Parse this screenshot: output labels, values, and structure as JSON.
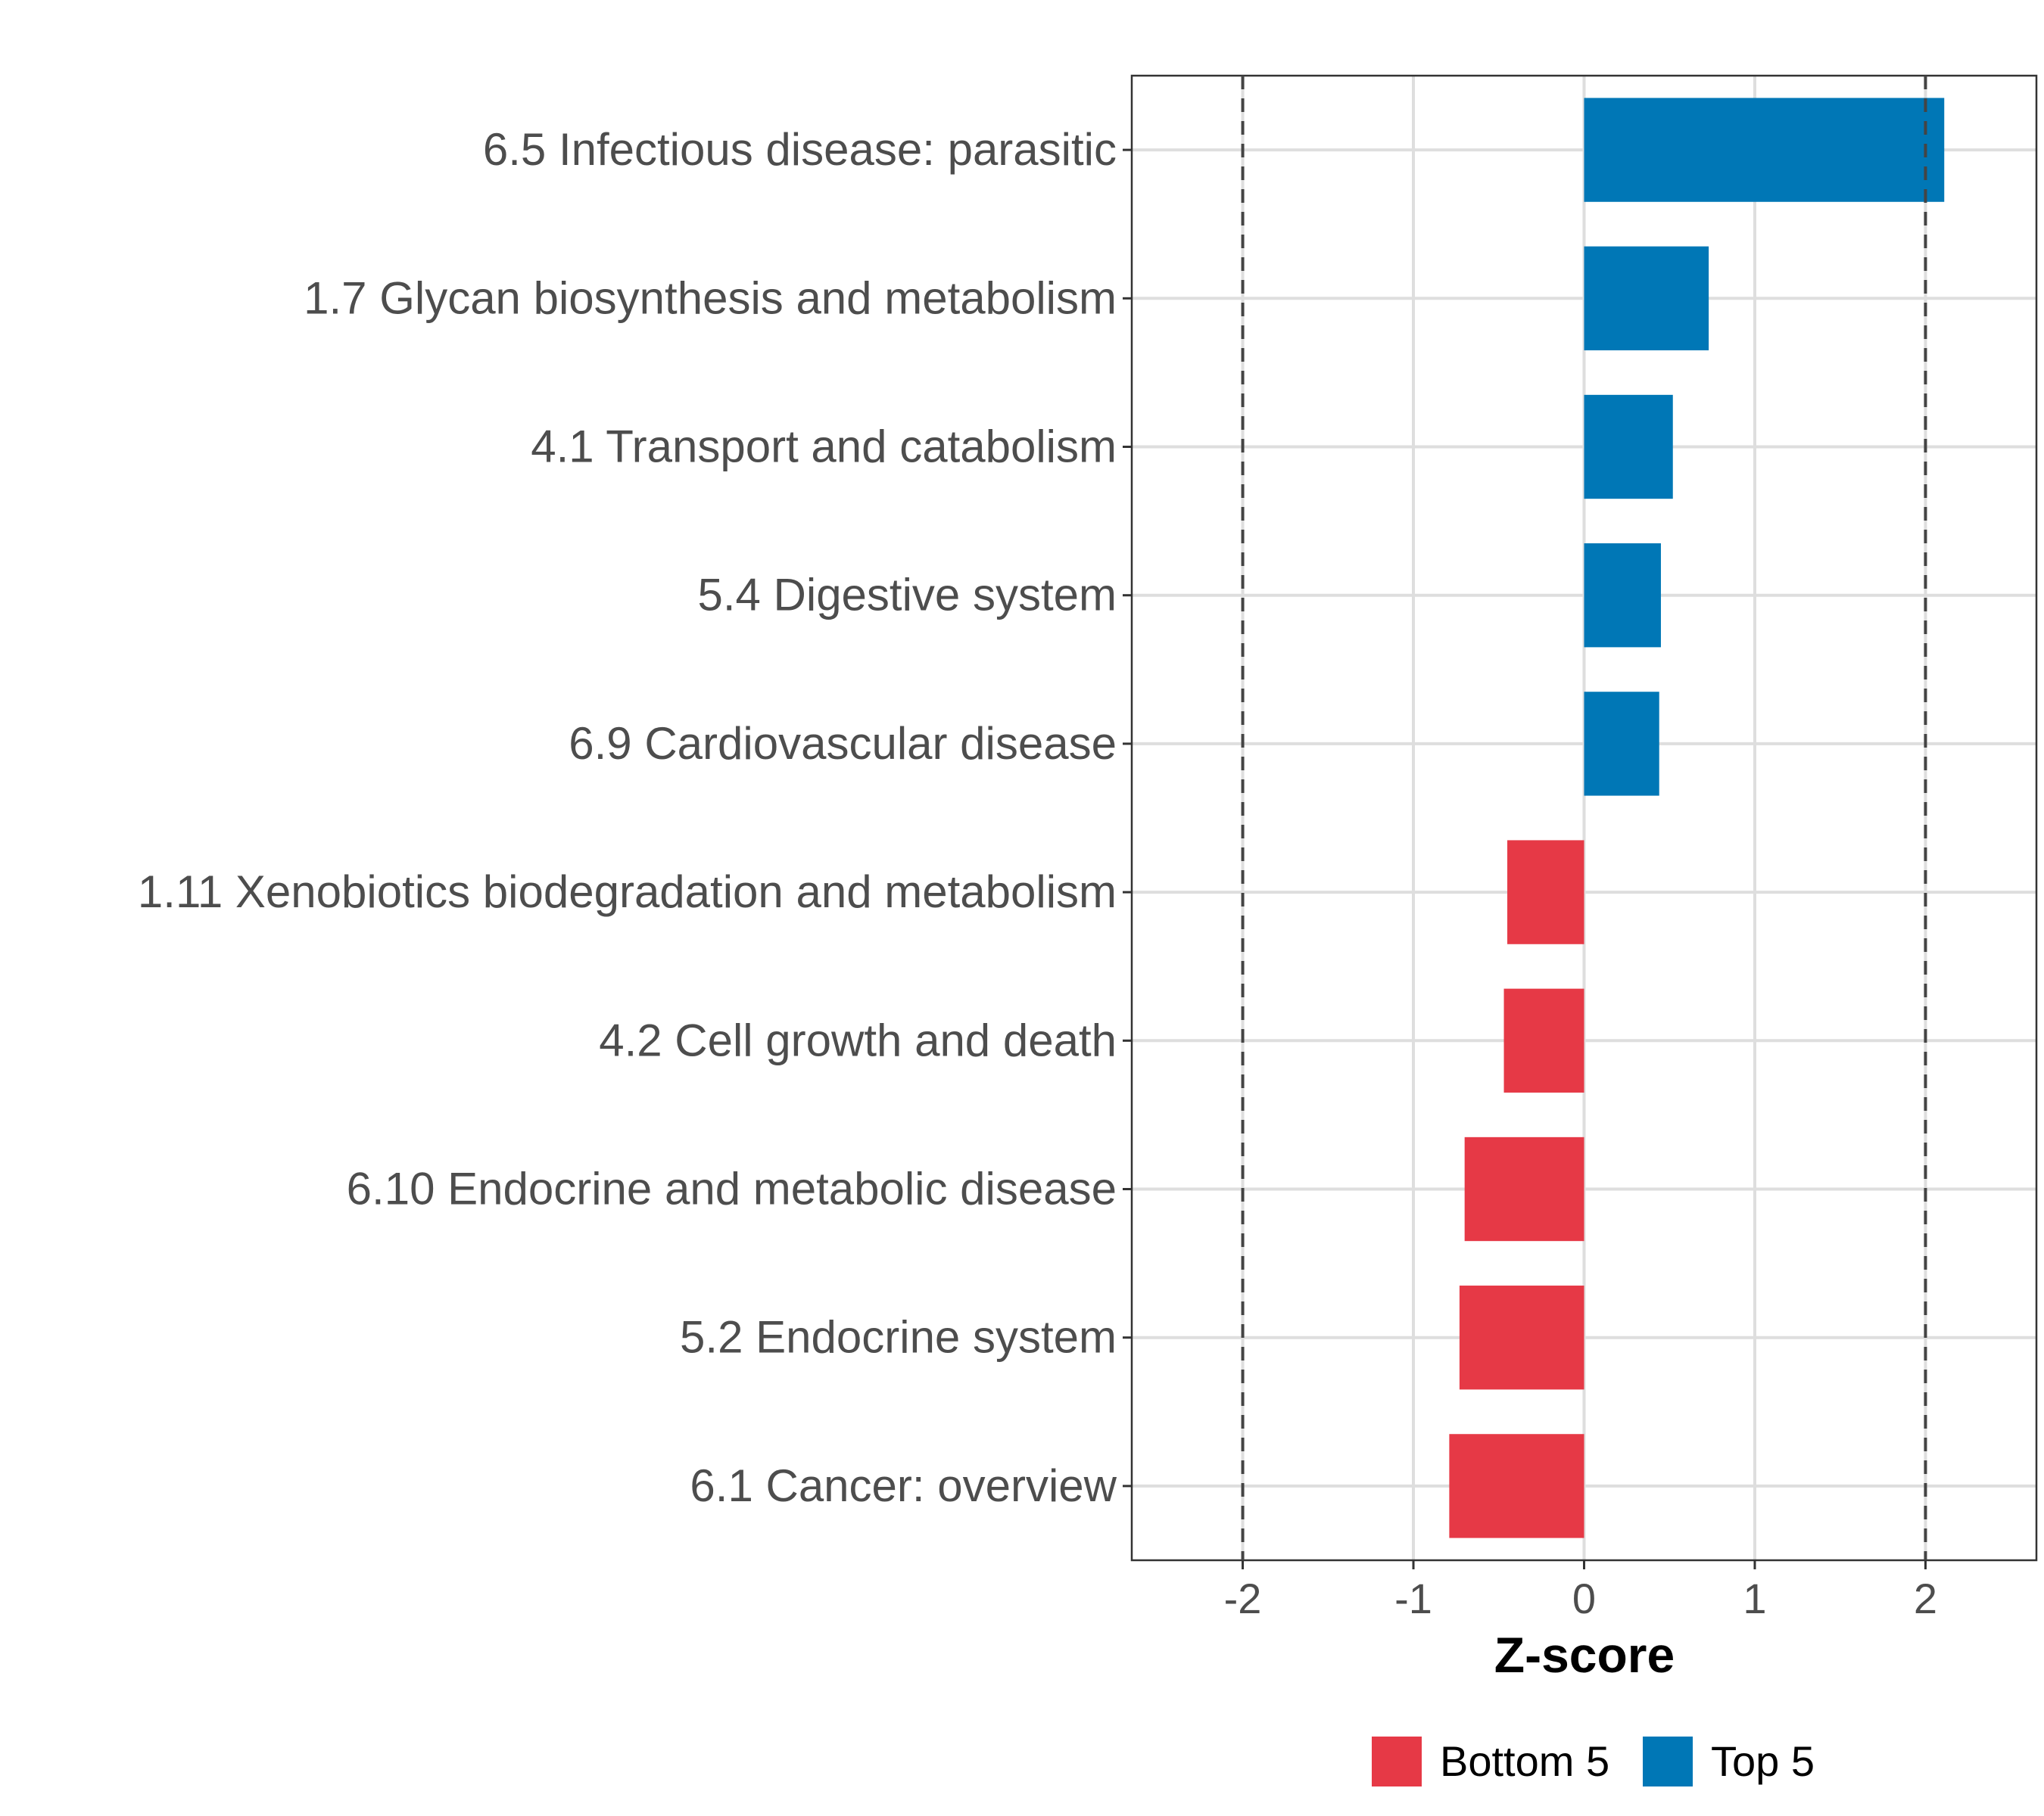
{
  "chart_data": {
    "type": "bar",
    "orientation": "horizontal",
    "title": "",
    "xlabel": "Z-score",
    "ylabel": "",
    "xlim": [
      -2.65,
      2.65
    ],
    "xticks": [
      -2,
      -1,
      0,
      1,
      2
    ],
    "xtick_labels": [
      "-2",
      "-1",
      "0",
      "1",
      "2"
    ],
    "reference_lines": [
      -2,
      2
    ],
    "grid": true,
    "categories": [
      "6.5 Infectious disease: parasitic",
      "1.7 Glycan biosynthesis and metabolism",
      "4.1 Transport and catabolism",
      "5.4 Digestive system",
      "6.9 Cardiovascular disease",
      "1.11 Xenobiotics biodegradation and metabolism",
      "4.2 Cell growth and death",
      "6.10 Endocrine and metabolic disease",
      "5.2 Endocrine system",
      "6.1 Cancer: overview"
    ],
    "values": [
      2.11,
      0.73,
      0.52,
      0.45,
      0.44,
      -0.45,
      -0.47,
      -0.7,
      -0.73,
      -0.79
    ],
    "groups": [
      "Top 5",
      "Top 5",
      "Top 5",
      "Top 5",
      "Top 5",
      "Bottom 5",
      "Bottom 5",
      "Bottom 5",
      "Bottom 5",
      "Bottom 5"
    ],
    "legend": [
      {
        "name": "Bottom 5",
        "color": "#e63946"
      },
      {
        "name": "Top 5",
        "color": "#0077b6"
      }
    ],
    "legend_position": "bottom"
  }
}
